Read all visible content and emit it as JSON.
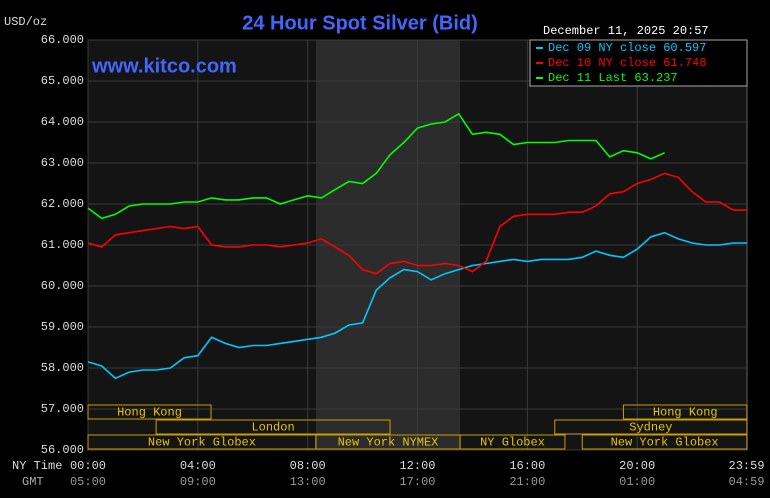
{
  "chart_data": {
    "type": "line",
    "title": "24 Hour Spot Silver (Bid)",
    "timestamp": "December 11, 2025 20:57",
    "watermark": "www.kitco.com",
    "y_unit": "USD/oz",
    "x_label": "NY Time",
    "x2_label": "GMT",
    "x": [
      0,
      0.5,
      1,
      1.5,
      2,
      2.5,
      3,
      3.5,
      4,
      4.5,
      5,
      5.5,
      6,
      6.5,
      7,
      7.5,
      8,
      8.5,
      9,
      9.5,
      10,
      10.5,
      11,
      11.5,
      12,
      12.5,
      13,
      13.5,
      14,
      14.5,
      15,
      15.5,
      16,
      16.5,
      17,
      17.5,
      18,
      18.5,
      19,
      19.5,
      20,
      20.5,
      21,
      21.5,
      22,
      22.5,
      23,
      23.5,
      24
    ],
    "series": [
      {
        "name": "Dec 09 NY close 60.597",
        "color": "#00c8ff",
        "values": [
          58.15,
          58.05,
          57.75,
          57.9,
          57.95,
          57.95,
          58.0,
          58.25,
          58.3,
          58.75,
          58.6,
          58.5,
          58.55,
          58.55,
          58.6,
          58.65,
          58.7,
          58.75,
          58.85,
          59.05,
          59.1,
          59.9,
          60.2,
          60.4,
          60.35,
          60.15,
          60.3,
          60.4,
          60.5,
          60.55,
          60.6,
          60.65,
          60.6,
          60.65,
          60.65,
          60.65,
          60.7,
          60.85,
          60.75,
          60.7,
          60.9,
          61.2,
          61.3,
          61.15,
          61.05,
          61.0,
          61.0,
          61.05,
          61.05
        ]
      },
      {
        "name": "Dec 10 NY close 61.748",
        "color": "#ff0000",
        "values": [
          61.05,
          60.95,
          61.25,
          61.3,
          61.35,
          61.4,
          61.45,
          61.4,
          61.45,
          61.0,
          60.95,
          60.95,
          61.0,
          61.0,
          60.95,
          61.0,
          61.05,
          61.15,
          60.95,
          60.75,
          60.4,
          60.3,
          60.55,
          60.6,
          60.5,
          60.5,
          60.55,
          60.5,
          60.35,
          60.6,
          61.45,
          61.7,
          61.75,
          61.75,
          61.75,
          61.8,
          61.8,
          61.95,
          62.25,
          62.3,
          62.5,
          62.6,
          62.75,
          62.65,
          62.3,
          62.05,
          62.05,
          61.85,
          61.85
        ]
      },
      {
        "name": "Dec 11 Last 63.237",
        "color": "#00ff00",
        "values": [
          61.9,
          61.65,
          61.75,
          61.95,
          62.0,
          62.0,
          62.0,
          62.05,
          62.05,
          62.15,
          62.1,
          62.1,
          62.15,
          62.15,
          62.0,
          62.1,
          62.2,
          62.15,
          62.35,
          62.55,
          62.5,
          62.75,
          63.2,
          63.5,
          63.85,
          63.95,
          64.0,
          64.2,
          63.7,
          63.75,
          63.7,
          63.45,
          63.5,
          63.5,
          63.5,
          63.55,
          63.55,
          63.55,
          63.15,
          63.3,
          63.25,
          63.1,
          63.25,
          null,
          null,
          null,
          null,
          null,
          null
        ]
      }
    ],
    "xlim": [
      0,
      24
    ],
    "ylim": [
      56,
      66
    ],
    "xticks": [
      {
        "value": 0,
        "label": "00:00"
      },
      {
        "value": 4,
        "label": "04:00"
      },
      {
        "value": 8,
        "label": "08:00"
      },
      {
        "value": 12,
        "label": "12:00"
      },
      {
        "value": 16,
        "label": "16:00"
      },
      {
        "value": 20,
        "label": "20:00"
      },
      {
        "value": 23.983,
        "label": "23:59"
      }
    ],
    "x2ticks": [
      {
        "value": 0,
        "label": "05:00"
      },
      {
        "value": 4,
        "label": "09:00"
      },
      {
        "value": 8,
        "label": "13:00"
      },
      {
        "value": 12,
        "label": "17:00"
      },
      {
        "value": 16,
        "label": "21:00"
      },
      {
        "value": 20,
        "label": "01:00"
      },
      {
        "value": 23.983,
        "label": "04:59"
      }
    ],
    "yticks": [
      {
        "value": 56,
        "label": "56.000"
      },
      {
        "value": 57,
        "label": "57.000"
      },
      {
        "value": 58,
        "label": "58.000"
      },
      {
        "value": 59,
        "label": "59.000"
      },
      {
        "value": 60,
        "label": "60.000"
      },
      {
        "value": 61,
        "label": "61.000"
      },
      {
        "value": 62,
        "label": "62.000"
      },
      {
        "value": 63,
        "label": "63.000"
      },
      {
        "value": 64,
        "label": "64.000"
      },
      {
        "value": 65,
        "label": "65.000"
      },
      {
        "value": 66,
        "label": "66.000"
      }
    ],
    "grid": true,
    "sessions": [
      {
        "label": "Hong Kong",
        "start": 0,
        "end": 4.48
      },
      {
        "label": "London",
        "start": 2.48,
        "end": 11.0
      },
      {
        "label": "New York Globex",
        "start": 0,
        "end": 8.3
      },
      {
        "label": "New York NYMEX",
        "start": 8.3,
        "end": 13.55
      },
      {
        "label": "NY Globex",
        "start": 13.55,
        "end": 17.37
      },
      {
        "label": "Sydney",
        "start": 17.0,
        "end": 24
      },
      {
        "label": "Hong Kong",
        "start": 19.5,
        "end": 24
      },
      {
        "label": "New York Globex",
        "start": 18.0,
        "end": 24
      }
    ]
  }
}
